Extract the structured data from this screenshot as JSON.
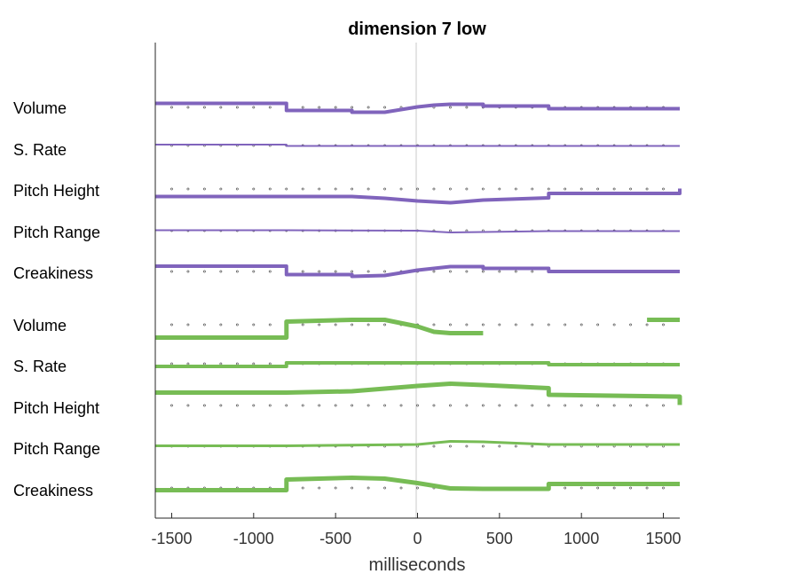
{
  "chart_data": {
    "type": "line",
    "title": "dimension  7 low",
    "xlabel": "milliseconds",
    "ylabel": "",
    "xlim": [
      -1600,
      1600
    ],
    "xticks": [
      -1500,
      -1000,
      -500,
      0,
      500,
      1000,
      1500
    ],
    "grid": false,
    "colors": {
      "purple": "#8064BC",
      "green": "#77BC55",
      "zero_line": "#c8c8c8",
      "axis": "#262626"
    },
    "rows": [
      {
        "label": "Volume",
        "color": "purple",
        "points": [
          [
            -1600,
            0.45
          ],
          [
            -800,
            0.45
          ],
          [
            -800,
            -0.35
          ],
          [
            -400,
            -0.35
          ],
          [
            -400,
            -0.55
          ],
          [
            -200,
            -0.55
          ],
          [
            0,
            0.05
          ],
          [
            100,
            0.25
          ],
          [
            200,
            0.35
          ],
          [
            400,
            0.35
          ],
          [
            400,
            0.15
          ],
          [
            800,
            0.15
          ],
          [
            800,
            -0.15
          ],
          [
            1600,
            -0.15
          ]
        ]
      },
      {
        "label": "S. Rate",
        "color": "purple",
        "points": [
          [
            -1600,
            0.1
          ],
          [
            -800,
            0.1
          ],
          [
            -800,
            -0.05
          ],
          [
            1600,
            -0.05
          ]
        ]
      },
      {
        "label": "Pitch Height",
        "color": "purple",
        "points": [
          [
            -1600,
            -0.85
          ],
          [
            -800,
            -0.85
          ],
          [
            -400,
            -0.85
          ],
          [
            -200,
            -1.05
          ],
          [
            0,
            -1.35
          ],
          [
            200,
            -1.55
          ],
          [
            400,
            -1.25
          ],
          [
            800,
            -1.0
          ],
          [
            800,
            -0.5
          ],
          [
            1600,
            -0.5
          ],
          [
            1600,
            0.05
          ]
        ]
      },
      {
        "label": "Pitch Range",
        "color": "purple",
        "points": [
          [
            -1600,
            0.05
          ],
          [
            -800,
            0.05
          ],
          [
            0,
            0.0
          ],
          [
            200,
            -0.2
          ],
          [
            400,
            -0.15
          ],
          [
            800,
            -0.05
          ],
          [
            1600,
            -0.05
          ]
        ]
      },
      {
        "label": "Creakiness",
        "color": "purple",
        "points": [
          [
            -1600,
            0.6
          ],
          [
            -800,
            0.6
          ],
          [
            -800,
            -0.35
          ],
          [
            -400,
            -0.35
          ],
          [
            -400,
            -0.55
          ],
          [
            -200,
            -0.45
          ],
          [
            0,
            0.15
          ],
          [
            200,
            0.55
          ],
          [
            400,
            0.55
          ],
          [
            400,
            0.35
          ],
          [
            800,
            0.35
          ],
          [
            800,
            0.0
          ],
          [
            1600,
            0.0
          ]
        ]
      },
      {
        "label": "Volume",
        "color": "green",
        "points": [
          [
            -1600,
            -1.45
          ],
          [
            -800,
            -1.45
          ],
          [
            -800,
            0.35
          ],
          [
            -400,
            0.55
          ],
          [
            -200,
            0.55
          ],
          [
            0,
            -0.2
          ],
          [
            100,
            -0.8
          ],
          [
            200,
            -0.95
          ],
          [
            400,
            -0.95
          ],
          [
            null,
            null
          ],
          [
            1400,
            0.55
          ],
          [
            1600,
            0.55
          ]
        ]
      },
      {
        "label": "S. Rate",
        "color": "green",
        "points": [
          [
            -1600,
            -0.3
          ],
          [
            -800,
            -0.3
          ],
          [
            -800,
            0.1
          ],
          [
            0,
            0.1
          ],
          [
            800,
            0.1
          ],
          [
            800,
            -0.1
          ],
          [
            1600,
            -0.1
          ]
        ]
      },
      {
        "label": "Pitch Height",
        "color": "green",
        "points": [
          [
            -1600,
            1.45
          ],
          [
            -800,
            1.45
          ],
          [
            -400,
            1.6
          ],
          [
            -200,
            1.9
          ],
          [
            0,
            2.2
          ],
          [
            200,
            2.45
          ],
          [
            400,
            2.3
          ],
          [
            800,
            1.95
          ],
          [
            800,
            1.2
          ],
          [
            1600,
            1.0
          ],
          [
            1600,
            0.05
          ]
        ]
      },
      {
        "label": "Pitch Range",
        "color": "green",
        "points": [
          [
            -1600,
            0.05
          ],
          [
            -800,
            0.05
          ],
          [
            0,
            0.2
          ],
          [
            200,
            0.55
          ],
          [
            400,
            0.5
          ],
          [
            800,
            0.2
          ],
          [
            1600,
            0.2
          ]
        ]
      },
      {
        "label": "Creakiness",
        "color": "green",
        "points": [
          [
            -1600,
            -0.25
          ],
          [
            -800,
            -0.25
          ],
          [
            -800,
            0.95
          ],
          [
            -400,
            1.15
          ],
          [
            -200,
            1.05
          ],
          [
            0,
            0.55
          ],
          [
            200,
            -0.05
          ],
          [
            400,
            -0.1
          ],
          [
            800,
            -0.1
          ],
          [
            800,
            0.45
          ],
          [
            1600,
            0.45
          ]
        ]
      }
    ]
  }
}
